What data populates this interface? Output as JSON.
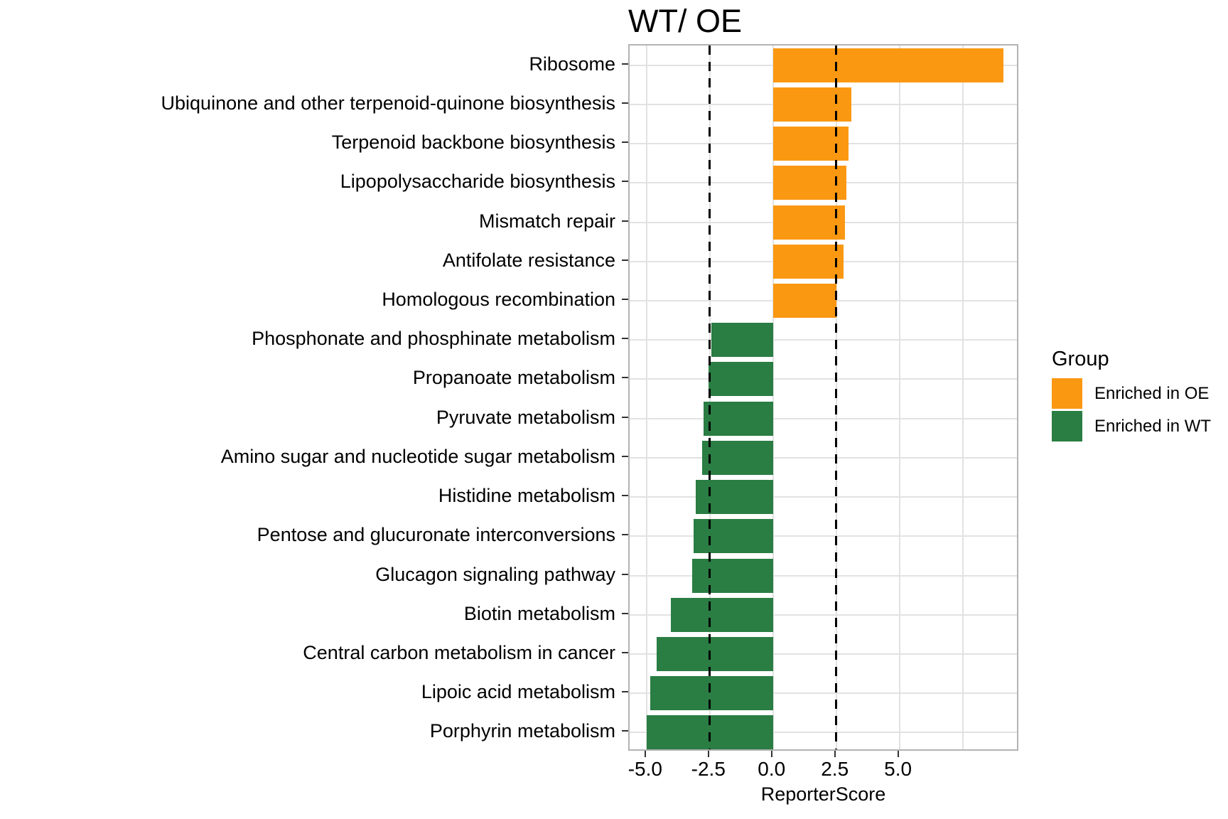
{
  "title": "WT/ OE",
  "axis": {
    "x_label": "ReporterScore"
  },
  "legend": {
    "title": "Group",
    "items": [
      {
        "label": "Enriched in OE",
        "color": "#FA9812"
      },
      {
        "label": "Enriched in WT",
        "color": "#2A7D43"
      }
    ]
  },
  "colors": {
    "enriched_oe": "#FA9812",
    "enriched_wt": "#2A7D43",
    "gridline": "#E2E2E2",
    "panel_border": "#B3B3B3",
    "threshold_line": "#000000",
    "text": "#000000"
  },
  "chart_data": {
    "type": "bar",
    "orientation": "horizontal",
    "title": "WT/ OE",
    "xlabel": "ReporterScore",
    "xlim": [
      -5.67,
      9.76
    ],
    "x_ticks": [
      {
        "value": -5.0,
        "label": "-5.0"
      },
      {
        "value": -2.5,
        "label": "-2.5"
      },
      {
        "value": 0.0,
        "label": "0.0"
      },
      {
        "value": 2.5,
        "label": "2.5"
      },
      {
        "value": 5.0,
        "label": "5.0"
      }
    ],
    "x_major_gridlines": [
      -5.0,
      -2.5,
      0.0,
      2.5,
      5.0,
      7.5
    ],
    "threshold_lines": [
      -2.5,
      2.5
    ],
    "grid": "major-only",
    "legend_position": "right",
    "categories": [
      "Ribosome",
      "Ubiquinone and other terpenoid-quinone biosynthesis",
      "Terpenoid backbone biosynthesis",
      "Lipopolysaccharide biosynthesis",
      "Mismatch repair",
      "Antifolate resistance",
      "Homologous recombination",
      "Phosphonate and phosphinate metabolism",
      "Propanoate metabolism",
      "Pyruvate metabolism",
      "Amino sugar and nucleotide sugar metabolism",
      "Histidine metabolism",
      "Pentose and glucuronate interconversions",
      "Glucagon signaling pathway",
      "Biotin metabolism",
      "Central carbon metabolism in cancer",
      "Lipoic acid metabolism",
      "Porphyrin metabolism"
    ],
    "values": [
      9.1,
      3.1,
      3.0,
      2.9,
      2.85,
      2.8,
      2.5,
      -2.45,
      -2.55,
      -2.75,
      -2.8,
      -3.05,
      -3.15,
      -3.2,
      -4.05,
      -4.6,
      -4.85,
      -5.0
    ],
    "groups": [
      "Enriched in OE",
      "Enriched in OE",
      "Enriched in OE",
      "Enriched in OE",
      "Enriched in OE",
      "Enriched in OE",
      "Enriched in OE",
      "Enriched in WT",
      "Enriched in WT",
      "Enriched in WT",
      "Enriched in WT",
      "Enriched in WT",
      "Enriched in WT",
      "Enriched in WT",
      "Enriched in WT",
      "Enriched in WT",
      "Enriched in WT",
      "Enriched in WT"
    ]
  }
}
